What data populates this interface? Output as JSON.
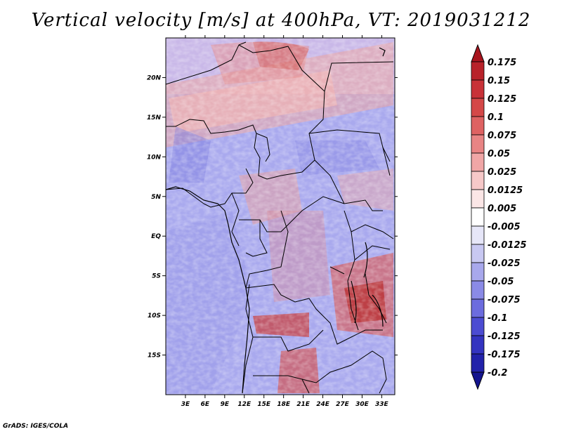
{
  "title": "Vertical velocity [m/s] at 400hPa, VT: 2019031212",
  "credit": "GrADS: IGES/COLA",
  "map": {
    "lon_range": [
      0,
      35
    ],
    "lat_range": [
      -20,
      25
    ],
    "lon_ticks": [
      "3E",
      "6E",
      "9E",
      "12E",
      "15E",
      "18E",
      "21E",
      "24E",
      "27E",
      "30E",
      "33E"
    ],
    "lat_ticks": [
      "20N",
      "15N",
      "10N",
      "5N",
      "EQ",
      "5S",
      "10S",
      "15S"
    ]
  },
  "colorbar": {
    "labels": [
      "0.175",
      "0.15",
      "0.125",
      "0.1",
      "0.075",
      "0.05",
      "0.025",
      "0.0125",
      "0.005",
      "-0.005",
      "-0.0125",
      "-0.025",
      "-0.05",
      "-0.075",
      "-0.1",
      "-0.125",
      "-0.175",
      "-0.2"
    ],
    "colors": [
      "#a8141e",
      "#b8222a",
      "#c83238",
      "#d44848",
      "#de6262",
      "#e88484",
      "#f0a6a6",
      "#f6c8c8",
      "#fbe6e6",
      "#ffffff",
      "#e6e6f8",
      "#c8c8f2",
      "#a8a8ec",
      "#8a8ae6",
      "#6c6cde",
      "#4c4cd2",
      "#3434c0",
      "#2222aa",
      "#14148e"
    ]
  }
}
